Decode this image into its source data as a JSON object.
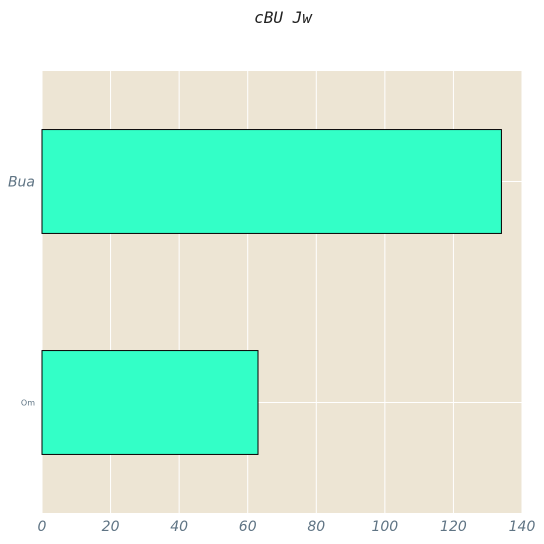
{
  "chart_data": {
    "type": "bar",
    "orientation": "horizontal",
    "title": "cBU Jw",
    "xlabel": "",
    "ylabel": "",
    "categories": [
      "Om",
      "Bua"
    ],
    "values": [
      63,
      134
    ],
    "xlim": [
      0,
      140
    ],
    "xticks": [
      0,
      20,
      40,
      60,
      80,
      100,
      120,
      140
    ],
    "grid": true,
    "colors": {
      "bar": "#33ffc7",
      "bar_edge": "#000000",
      "background": "#ede5d4",
      "grid": "#ffffff",
      "tick_text": "#5f7484"
    }
  }
}
